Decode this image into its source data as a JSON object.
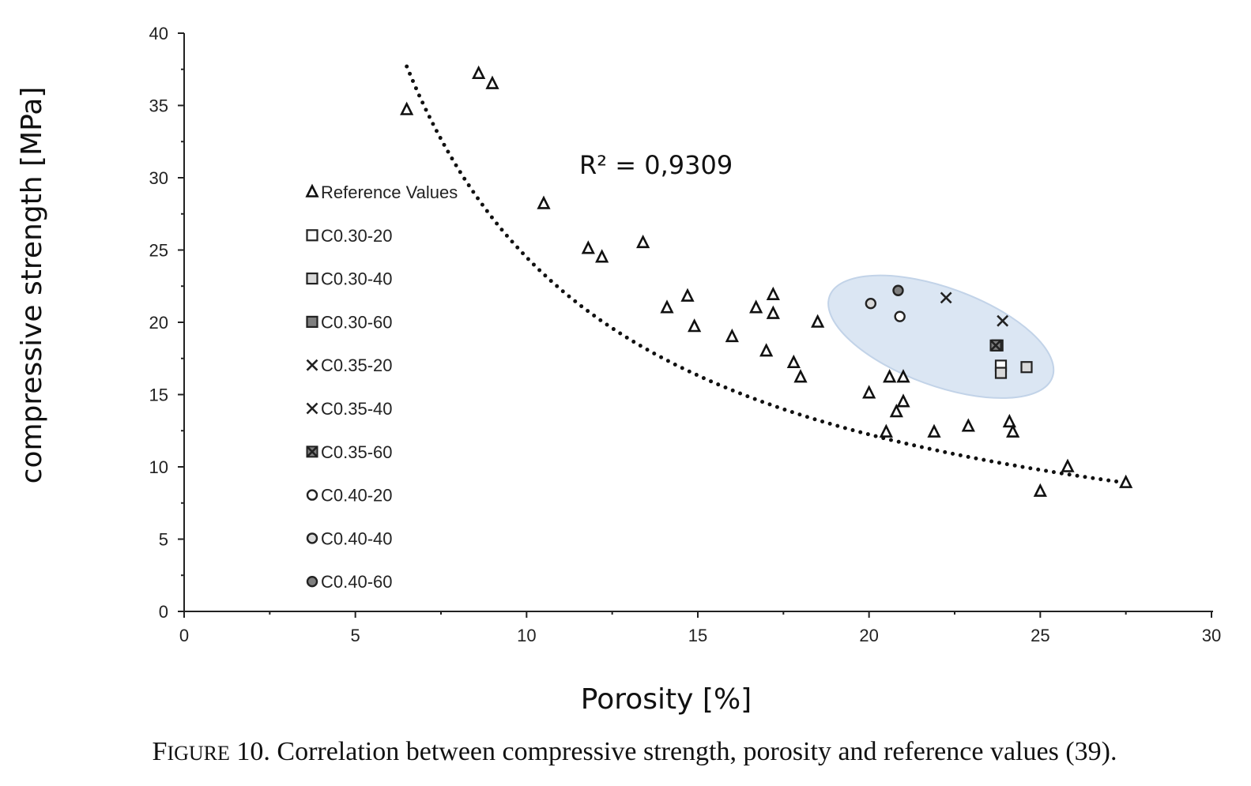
{
  "chart_data": {
    "type": "scatter",
    "xlabel": "Porosity [%]",
    "ylabel": "compressive strength [MPa]",
    "xlim": [
      0,
      30
    ],
    "ylim": [
      0,
      40
    ],
    "x_ticks": [
      0,
      5,
      10,
      15,
      20,
      25,
      30
    ],
    "y_ticks": [
      0,
      5,
      10,
      15,
      20,
      25,
      30,
      35,
      40
    ],
    "grid": false,
    "legend_position": "left-inside",
    "annotation": "R² = 0,9309",
    "trendline": {
      "style": "dotted",
      "color": "#111111",
      "x_range": [
        6.5,
        27.5
      ],
      "y_at_start": 37.7,
      "y_at_end": 8.9
    },
    "highlight_region": {
      "shape": "ellipse",
      "color": "#dbe6f3",
      "x_range": [
        18.7,
        25.5
      ],
      "y_range": [
        15.0,
        23.0
      ]
    },
    "series": [
      {
        "name": "Reference Values",
        "marker": "triangle",
        "points": [
          [
            6.5,
            34.7
          ],
          [
            8.6,
            37.2
          ],
          [
            9.0,
            36.5
          ],
          [
            10.5,
            28.2
          ],
          [
            11.8,
            25.1
          ],
          [
            12.2,
            24.5
          ],
          [
            13.4,
            25.5
          ],
          [
            14.1,
            21.0
          ],
          [
            14.7,
            21.8
          ],
          [
            14.9,
            19.7
          ],
          [
            16.0,
            19.0
          ],
          [
            16.7,
            21.0
          ],
          [
            17.0,
            18.0
          ],
          [
            17.2,
            21.9
          ],
          [
            17.2,
            20.6
          ],
          [
            17.8,
            17.2
          ],
          [
            18.0,
            16.2
          ],
          [
            18.5,
            20.0
          ],
          [
            20.0,
            15.1
          ],
          [
            20.5,
            12.4
          ],
          [
            20.6,
            16.2
          ],
          [
            20.8,
            13.8
          ],
          [
            21.0,
            16.2
          ],
          [
            21.0,
            14.5
          ],
          [
            21.9,
            12.4
          ],
          [
            22.9,
            12.8
          ],
          [
            24.1,
            13.1
          ],
          [
            24.2,
            12.4
          ],
          [
            25.0,
            8.3
          ],
          [
            25.8,
            10.0
          ],
          [
            27.5,
            8.9
          ]
        ]
      },
      {
        "name": "C0.30-20",
        "marker": "square",
        "fill": "#ffffff",
        "points": [
          [
            23.85,
            17.0
          ]
        ]
      },
      {
        "name": "C0.30-40",
        "marker": "square",
        "fill": "#d9d9d9",
        "points": [
          [
            24.6,
            16.9
          ],
          [
            23.85,
            16.5
          ]
        ]
      },
      {
        "name": "C0.30-60",
        "marker": "square",
        "fill": "#7f7f7f",
        "points": [
          [
            23.75,
            18.4
          ]
        ]
      },
      {
        "name": "C0.35-20",
        "marker": "x",
        "fill": "none",
        "points": [
          [
            22.25,
            21.7
          ]
        ]
      },
      {
        "name": "C0.35-40",
        "marker": "x",
        "fill": "none",
        "points": [
          [
            23.9,
            20.1
          ]
        ]
      },
      {
        "name": "C0.35-60",
        "marker": "xsquare",
        "fill": "#7f7f7f",
        "points": [
          [
            23.7,
            18.4
          ]
        ]
      },
      {
        "name": "C0.40-20",
        "marker": "circle",
        "fill": "#ffffff",
        "points": [
          [
            20.9,
            20.4
          ]
        ]
      },
      {
        "name": "C0.40-40",
        "marker": "circle",
        "fill": "#d9d9d9",
        "points": [
          [
            20.05,
            21.3
          ]
        ]
      },
      {
        "name": "C0.40-60",
        "marker": "circle",
        "fill": "#7f7f7f",
        "points": [
          [
            20.85,
            22.2
          ]
        ]
      }
    ]
  },
  "caption": {
    "prefix_big": "F",
    "prefix_small": "IGURE",
    "text": " 10. Correlation between compressive strength, porosity and reference values (39)."
  }
}
